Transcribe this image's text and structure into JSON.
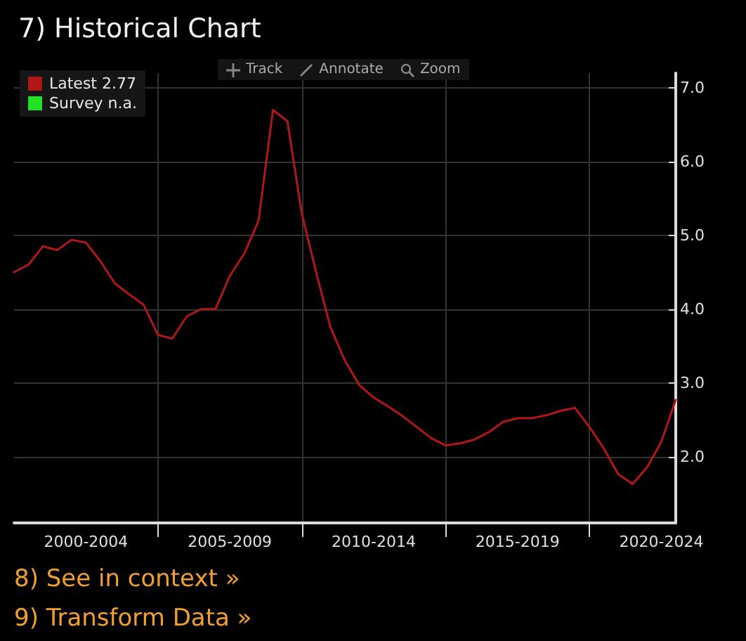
{
  "chart_data": {
    "type": "line",
    "title": "7) Historical Chart",
    "categories": [
      null,
      null,
      null,
      null,
      null,
      "2000-2004",
      null,
      null,
      null,
      null,
      null,
      null,
      null,
      null,
      null,
      "2005-2009",
      null,
      null,
      null,
      null,
      null,
      null,
      null,
      null,
      null,
      "2010-2014",
      null,
      null,
      null,
      null,
      null,
      null,
      null,
      null,
      null,
      "2015-2019",
      null,
      null,
      null,
      null,
      null,
      null,
      null,
      null,
      null,
      "2020-2024",
      null
    ],
    "series": [
      {
        "name": "Latest 2.77",
        "color": "#b01818",
        "values": [
          4.5,
          4.6,
          4.85,
          4.8,
          4.94,
          4.9,
          4.65,
          4.35,
          4.2,
          4.06,
          3.65,
          3.6,
          3.9,
          4.0,
          4.0,
          4.45,
          4.75,
          5.2,
          6.7,
          6.55,
          5.3,
          4.5,
          3.75,
          3.3,
          2.97,
          2.8,
          2.68,
          2.55,
          2.4,
          2.25,
          2.15,
          2.18,
          2.23,
          2.33,
          2.47,
          2.52,
          2.52,
          2.56,
          2.62,
          2.66,
          2.4,
          2.11,
          1.76,
          1.63,
          1.85,
          2.2,
          2.77
        ]
      },
      {
        "name": "Survey n.a.",
        "color": "#22e022",
        "values": [
          null,
          null,
          null,
          null,
          null,
          null,
          null,
          null,
          null,
          null,
          null,
          null,
          null,
          null,
          null,
          null,
          null,
          null,
          null,
          null,
          null,
          null,
          null,
          null,
          null,
          null,
          null,
          null,
          null,
          null,
          null,
          null,
          null,
          null,
          null,
          null,
          null,
          null,
          null,
          null,
          null,
          null,
          null,
          null,
          null,
          null,
          null
        ]
      }
    ],
    "ylim": [
      1.1,
      7.2
    ],
    "yticks": [
      {
        "value": 2,
        "label": "2.0"
      },
      {
        "value": 3,
        "label": "3.0"
      },
      {
        "value": 4,
        "label": "4.0"
      },
      {
        "value": 5,
        "label": "5.0"
      },
      {
        "value": 6,
        "label": "6.0"
      },
      {
        "value": 7,
        "label": "7.0"
      }
    ],
    "grid": true,
    "legend": "top left",
    "marker": "none",
    "line_style": "solid",
    "annotations": [
      "Track",
      "Annotate",
      "Zoom",
      "8) See in context »",
      "9) Transform Data »"
    ]
  }
}
